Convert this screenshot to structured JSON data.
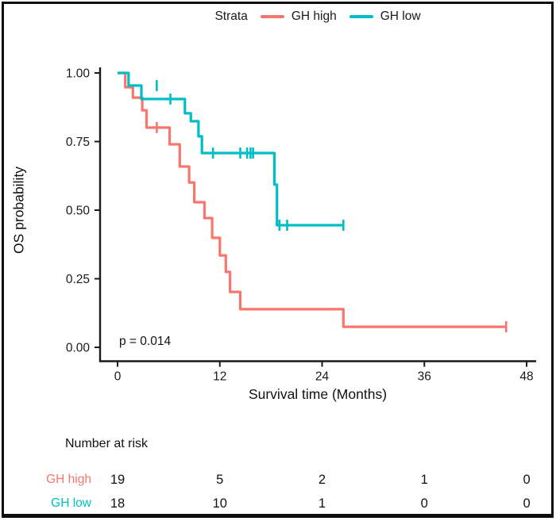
{
  "figure": {
    "p_value": "p = 0.014",
    "background": "#ffffff",
    "border_color": "#0e0e0e",
    "text_color": "#1a1a1a"
  },
  "legend": {
    "title": "Strata",
    "items": [
      {
        "label": "GH high",
        "color": "#F8766D"
      },
      {
        "label": "GH low",
        "color": "#00BFC4"
      }
    ]
  },
  "chart_data": {
    "type": "line",
    "subtype": "kaplan-meier-step-curve",
    "title": "",
    "xlabel": "Survival time (Months)",
    "ylabel": "OS probability",
    "xlim": [
      0,
      48
    ],
    "ylim": [
      0,
      1
    ],
    "x_ticks": [
      0,
      12,
      24,
      36,
      48
    ],
    "y_ticks": [
      "0.00",
      "0.25",
      "0.50",
      "0.75",
      "1.00"
    ],
    "grid": "off",
    "legend_position": "top",
    "annotation": "p = 0.014",
    "series": [
      {
        "name": "GH high",
        "color": "#F8766D",
        "steps": [
          [
            0,
            1.0
          ],
          [
            0.9,
            0.948
          ],
          [
            1.8,
            0.91
          ],
          [
            2.9,
            0.864
          ],
          [
            3.4,
            0.801
          ],
          [
            6.1,
            0.74
          ],
          [
            7.3,
            0.659
          ],
          [
            8.4,
            0.601
          ],
          [
            9.0,
            0.529
          ],
          [
            10.2,
            0.471
          ],
          [
            11.1,
            0.399
          ],
          [
            12.0,
            0.335
          ],
          [
            12.7,
            0.275
          ],
          [
            13.2,
            0.202
          ],
          [
            14.4,
            0.139
          ],
          [
            26.5,
            0.075
          ]
        ],
        "end_time": 45.6,
        "censors": [
          [
            4.6,
            0.801
          ],
          [
            45.6,
            0.075
          ]
        ]
      },
      {
        "name": "GH low",
        "color": "#00BFC4",
        "steps": [
          [
            0,
            1.0
          ],
          [
            1.3,
            0.954
          ],
          [
            2.8,
            0.905
          ],
          [
            7.9,
            0.853
          ],
          [
            8.6,
            0.824
          ],
          [
            9.5,
            0.769
          ],
          [
            9.9,
            0.708
          ],
          [
            18.4,
            0.593
          ],
          [
            18.7,
            0.445
          ]
        ],
        "end_time": 26.5,
        "censors": [
          [
            4.6,
            0.954
          ],
          [
            6.2,
            0.905
          ],
          [
            11.2,
            0.708
          ],
          [
            14.4,
            0.708
          ],
          [
            15.2,
            0.708
          ],
          [
            15.6,
            0.708
          ],
          [
            15.9,
            0.708
          ],
          [
            19.0,
            0.445
          ],
          [
            19.9,
            0.445
          ],
          [
            26.5,
            0.445
          ]
        ]
      }
    ]
  },
  "risk_table": {
    "title": "Number at risk",
    "columns": [
      0,
      12,
      24,
      36,
      48
    ],
    "rows": [
      {
        "label": "GH high",
        "color": "#F8766D",
        "values": [
          "19",
          "5",
          "2",
          "1",
          "0"
        ]
      },
      {
        "label": "GH low",
        "color": "#00BFC4",
        "values": [
          "18",
          "10",
          "1",
          "0",
          "0"
        ]
      }
    ]
  }
}
